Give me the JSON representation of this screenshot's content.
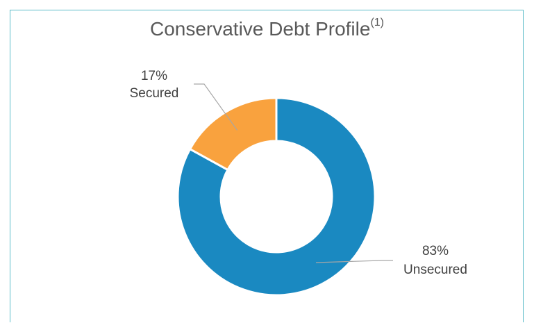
{
  "chart_data": {
    "type": "pie",
    "title": "Conservative Debt Profile",
    "title_superscript": "(1)",
    "donut": true,
    "slices": [
      {
        "label": "Unsecured",
        "value": 83,
        "value_label": "83%",
        "color": "#1a89c1"
      },
      {
        "label": "Secured",
        "value": 17,
        "value_label": "17%",
        "color": "#f9a23e"
      }
    ]
  }
}
